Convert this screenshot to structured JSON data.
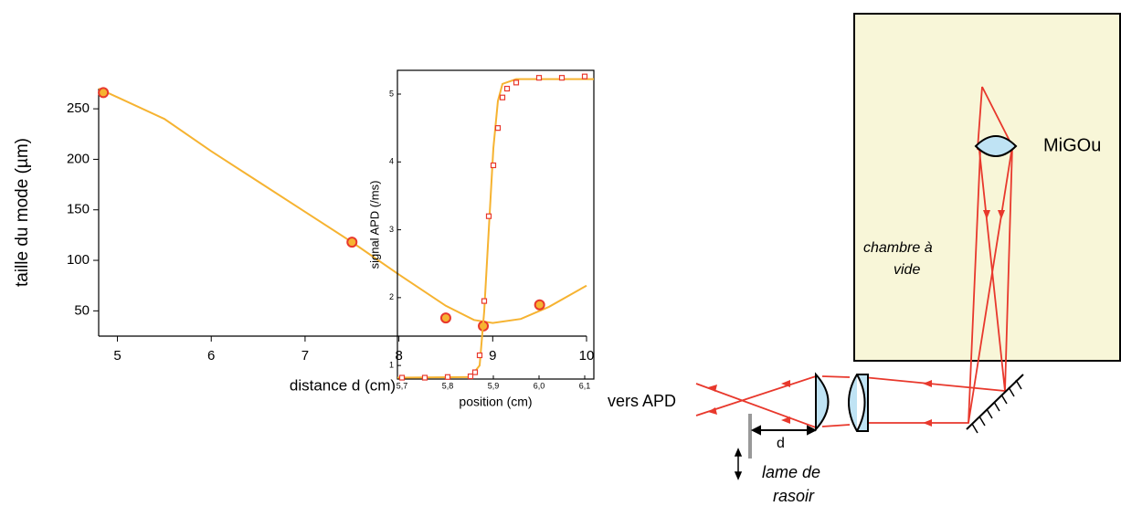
{
  "chart_data": [
    {
      "type": "scatter",
      "x_label": "distance d (cm)",
      "y_label": "taille du mode (µm)",
      "xlim": [
        4.8,
        10
      ],
      "ylim": [
        25,
        270
      ],
      "xticks": [
        5,
        6,
        7,
        8,
        9,
        10
      ],
      "yticks": [
        50,
        100,
        150,
        200,
        250
      ],
      "series": [
        {
          "kind": "line",
          "color": "#f6b331",
          "x": [
            4.8,
            5.5,
            6,
            6.5,
            7,
            7.5,
            8,
            8.5,
            8.8,
            9,
            9.3,
            9.6,
            10
          ],
          "values": [
            270,
            240,
            208,
            178,
            148,
            118,
            86,
            55,
            41,
            38,
            42,
            54,
            75
          ]
        },
        {
          "kind": "points",
          "marker": "circle",
          "color": "#f6b331",
          "edge": "#e8382c",
          "x": [
            4.85,
            7.5,
            8.5,
            8.9,
            9.5
          ],
          "values": [
            266,
            118,
            43,
            35,
            56
          ]
        }
      ]
    },
    {
      "type": "scatter",
      "x_label": "position  (cm)",
      "y_label": "signal APD (/ms)",
      "xlim": [
        5.69,
        6.12
      ],
      "ylim": [
        0.8,
        5.35
      ],
      "xticks": [
        {
          "value": 5.7,
          "label": "5,7"
        },
        {
          "value": 5.8,
          "label": "5,8"
        },
        {
          "value": 5.9,
          "label": "5,9"
        },
        {
          "value": 6.0,
          "label": "6,0"
        },
        {
          "value": 6.1,
          "label": "6,1"
        }
      ],
      "yticks": [
        1,
        2,
        3,
        4,
        5
      ],
      "series": [
        {
          "kind": "line",
          "color": "#f6b331",
          "x": [
            5.69,
            5.85,
            5.87,
            5.88,
            5.89,
            5.9,
            5.91,
            5.92,
            5.95,
            6.12
          ],
          "values": [
            0.82,
            0.83,
            1.0,
            1.8,
            3.0,
            4.2,
            4.9,
            5.15,
            5.22,
            5.22
          ]
        },
        {
          "kind": "points",
          "marker": "square",
          "color": "#ffffff",
          "edge": "#e8382c",
          "x": [
            5.7,
            5.75,
            5.8,
            5.85,
            5.86,
            5.87,
            5.88,
            5.89,
            5.9,
            5.91,
            5.92,
            5.93,
            5.95,
            6.0,
            6.05,
            6.1
          ],
          "values": [
            0.82,
            0.82,
            0.83,
            0.84,
            0.9,
            1.15,
            1.95,
            3.2,
            3.95,
            4.5,
            4.95,
            5.08,
            5.17,
            5.24,
            5.24,
            5.26
          ]
        }
      ]
    }
  ],
  "diagram": {
    "labels": {
      "instrument": "MiGOu",
      "chamber": [
        "chambre à",
        "vide"
      ],
      "output": "vers APD",
      "distance": "d",
      "blade": [
        "lame de",
        "rasoir"
      ]
    }
  }
}
